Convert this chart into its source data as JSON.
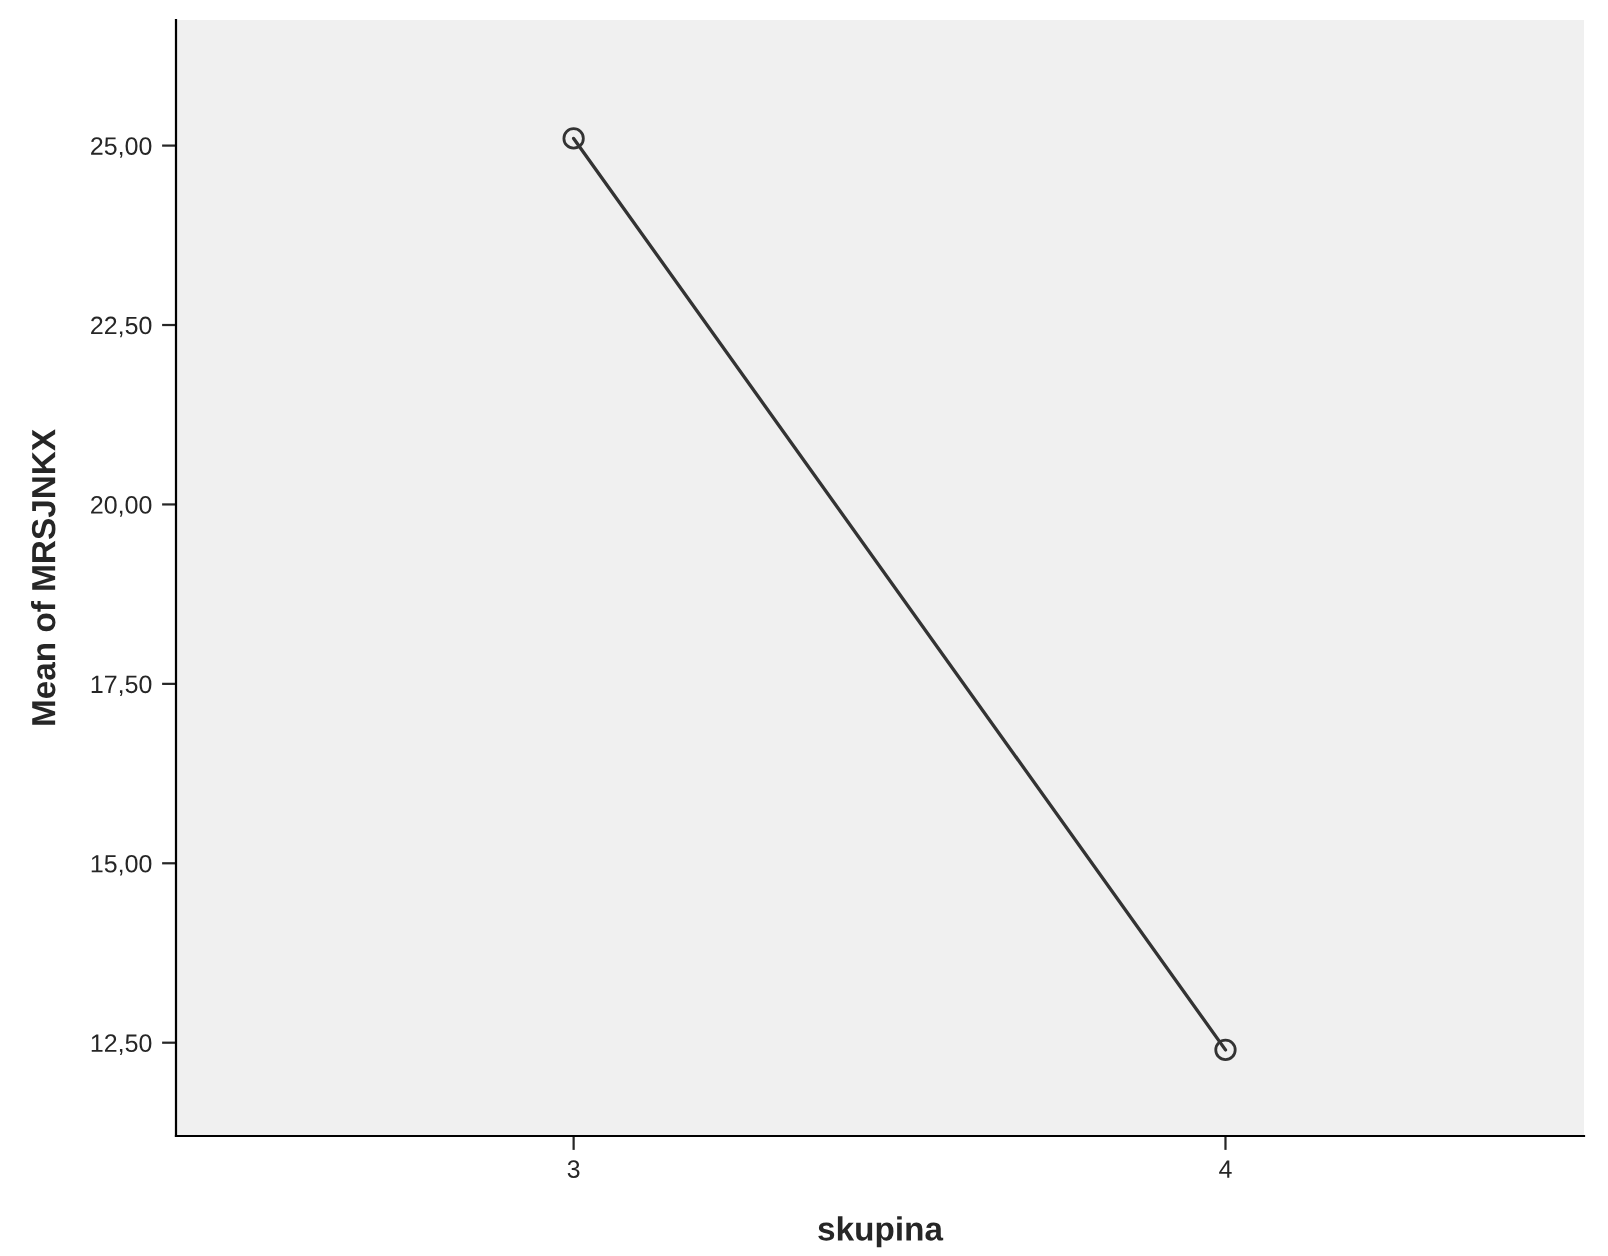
{
  "chart_data": {
    "type": "line",
    "xlabel": "skupina",
    "ylabel": "Mean of MRSJNKX",
    "categories": [
      "3",
      "4"
    ],
    "series": [
      {
        "color": "#333333",
        "values": [
          25.1,
          12.4
        ]
      }
    ],
    "ylim": [
      11.2,
      26.75
    ],
    "yticks": [
      {
        "value": 12.5,
        "label": "12,50"
      },
      {
        "value": 15,
        "label": "15,00"
      },
      {
        "value": 17.5,
        "label": "17,50"
      },
      {
        "value": 20,
        "label": "20,00"
      },
      {
        "value": 22.5,
        "label": "22,50"
      },
      {
        "value": 25,
        "label": "25,00"
      }
    ],
    "marker": "circle",
    "line_style": "solid",
    "grid": false,
    "legend": false
  }
}
